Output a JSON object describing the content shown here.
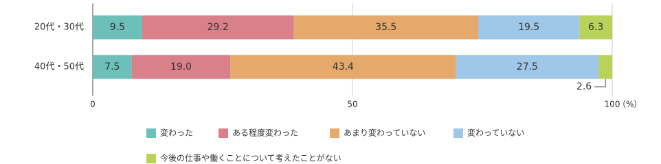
{
  "chart_data": {
    "type": "stacked-bar-horizontal",
    "categories": [
      "20代・30代",
      "40代・50代"
    ],
    "series": [
      {
        "name": "変わった",
        "color": "#6cc0b9",
        "values": [
          9.5,
          7.5
        ]
      },
      {
        "name": "ある程度変わった",
        "color": "#d9808a",
        "values": [
          29.2,
          19.0
        ],
        "value_labels": [
          "29.2",
          "19.0"
        ]
      },
      {
        "name": "あまり変わっていない",
        "color": "#e5a96b",
        "values": [
          35.5,
          43.4
        ]
      },
      {
        "name": "変わっていない",
        "color": "#9fc7e8",
        "values": [
          19.5,
          27.5
        ]
      },
      {
        "name": "今後の仕事や働くことについて考えたことがない",
        "color": "#b9d35a",
        "values": [
          6.3,
          2.6
        ]
      }
    ],
    "xlim": [
      0,
      100
    ],
    "xticks": [
      0,
      50,
      100
    ],
    "x_label": "（%）",
    "grid": true
  }
}
